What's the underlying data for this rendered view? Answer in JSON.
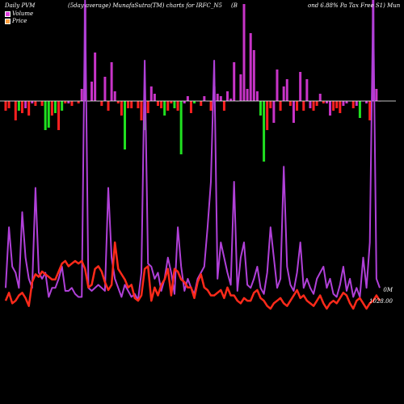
{
  "header": {
    "left": "Daily PVM",
    "title": "(5day average) MunafaSutra(TM) charts for IRFC_N5",
    "mid": "(B",
    "right": "ond 6.88% Pa  Tax Free  S1) Mun"
  },
  "legend": {
    "volume_label": "Volume",
    "volume_color": "#e040e0",
    "price_label": "Price",
    "price_color": "#ffa040"
  },
  "right_labels": {
    "volume": "0M",
    "price": "1028.00"
  },
  "colors": {
    "background": "#000000",
    "pvm_up": "#c834c8",
    "pvm_down_red": "#ff2020",
    "pvm_down_green": "#20e020",
    "zero_line": "#ffffff",
    "volume_line": "#b040d8",
    "price_line": "#ff2a1a"
  },
  "chart_data": {
    "type": "bar",
    "title": "(5day average) MunafaSutra(TM) charts for IRFC_N5",
    "pvm_series": {
      "name": "Daily PVM",
      "values": [
        -4,
        -3,
        0,
        -8,
        -4,
        -5,
        -3,
        -6,
        -1,
        -2,
        0,
        -2,
        -12,
        -11,
        -6,
        -5,
        -12,
        -4,
        -1,
        -1,
        -2,
        0,
        -1,
        5,
        40,
        0,
        8,
        20,
        0,
        -2,
        10,
        -4,
        16,
        4,
        -1,
        -6,
        -20,
        -3,
        -3,
        0,
        -3,
        -8,
        -12,
        -5,
        6,
        3,
        -2,
        -3,
        -6,
        -4,
        -1,
        -3,
        -4,
        -22,
        -1,
        2,
        -5,
        -1,
        0,
        -2,
        2,
        0,
        -4,
        6,
        3,
        2,
        -4,
        4,
        1,
        16,
        0,
        11,
        40,
        5,
        28,
        21,
        4,
        -6,
        -25,
        -12,
        -3,
        -9,
        13,
        -4,
        6,
        9,
        -2,
        -9,
        -4,
        12,
        -4,
        9,
        -3,
        -4,
        -2,
        3,
        -1,
        -1,
        -6,
        -4,
        -3,
        -5,
        -2,
        -1,
        0,
        -3,
        -2,
        -7,
        0,
        -1,
        -8,
        44,
        5,
        0
      ],
      "colors": [
        "r",
        "r",
        "m",
        "r",
        "g",
        "r",
        "m",
        "r",
        "m",
        "r",
        "m",
        "r",
        "g",
        "g",
        "r",
        "g",
        "r",
        "g",
        "r",
        "m",
        "r",
        "m",
        "r",
        "m",
        "m",
        "m",
        "m",
        "m",
        "m",
        "r",
        "m",
        "r",
        "m",
        "m",
        "r",
        "r",
        "g",
        "r",
        "r",
        "m",
        "r",
        "r",
        "g",
        "r",
        "m",
        "m",
        "r",
        "r",
        "g",
        "r",
        "r",
        "g",
        "r",
        "g",
        "m",
        "m",
        "r",
        "g",
        "r",
        "r",
        "m",
        "m",
        "r",
        "m",
        "m",
        "m",
        "r",
        "m",
        "m",
        "m",
        "m",
        "m",
        "m",
        "m",
        "m",
        "m",
        "m",
        "g",
        "g",
        "r",
        "r",
        "m",
        "m",
        "r",
        "m",
        "m",
        "r",
        "m",
        "r",
        "m",
        "r",
        "m",
        "m",
        "r",
        "r",
        "m",
        "r",
        "m",
        "m",
        "r",
        "r",
        "r",
        "m",
        "m",
        "m",
        "r",
        "m",
        "g",
        "m",
        "m",
        "r",
        "m",
        "m",
        "m"
      ]
    },
    "volume_series": {
      "name": "Volume",
      "values": [
        5,
        25,
        12,
        10,
        5,
        30,
        15,
        8,
        5,
        38,
        10,
        8,
        10,
        2,
        5,
        5,
        8,
        12,
        4,
        4,
        5,
        3,
        2,
        2,
        100,
        5,
        4,
        5,
        6,
        5,
        4,
        38,
        15,
        8,
        5,
        2,
        6,
        4,
        2,
        3,
        1,
        10,
        80,
        13,
        12,
        8,
        10,
        4,
        8,
        15,
        10,
        3,
        25,
        12,
        4,
        8,
        5,
        3,
        8,
        10,
        12,
        25,
        40,
        80,
        8,
        20,
        15,
        10,
        6,
        40,
        4,
        15,
        20,
        6,
        5,
        8,
        12,
        5,
        3,
        10,
        25,
        15,
        5,
        8,
        45,
        12,
        6,
        4,
        10,
        20,
        5,
        8,
        5,
        3,
        8,
        10,
        12,
        5,
        8,
        3,
        2,
        6,
        12,
        4,
        8,
        2,
        5,
        2,
        15,
        5,
        20,
        100,
        8,
        5
      ]
    },
    "price_series": {
      "name": "Price",
      "values": [
        1028,
        1031,
        1027,
        1028,
        1030,
        1031,
        1029,
        1026,
        1035,
        1038,
        1037,
        1039,
        1038,
        1037,
        1036,
        1036,
        1039,
        1042,
        1043,
        1041,
        1042,
        1043,
        1042,
        1043,
        1040,
        1033,
        1034,
        1040,
        1041,
        1039,
        1035,
        1032,
        1034,
        1050,
        1040,
        1038,
        1036,
        1033,
        1034,
        1029,
        1028,
        1030,
        1040,
        1041,
        1028,
        1033,
        1030,
        1034,
        1036,
        1040,
        1030,
        1040,
        1039,
        1036,
        1035,
        1033,
        1033,
        1029,
        1035,
        1038,
        1033,
        1032,
        1030,
        1030,
        1031,
        1032,
        1029,
        1033,
        1030,
        1030,
        1028,
        1027,
        1029,
        1028,
        1028,
        1031,
        1032,
        1029,
        1028,
        1026,
        1025,
        1027,
        1028,
        1029,
        1027,
        1026,
        1028,
        1030,
        1032,
        1029,
        1030,
        1028,
        1027,
        1026,
        1028,
        1030,
        1027,
        1025,
        1027,
        1028,
        1027,
        1029,
        1031,
        1030,
        1027,
        1025,
        1028,
        1029,
        1027,
        1025,
        1027,
        1028,
        1030,
        1028
      ]
    }
  }
}
